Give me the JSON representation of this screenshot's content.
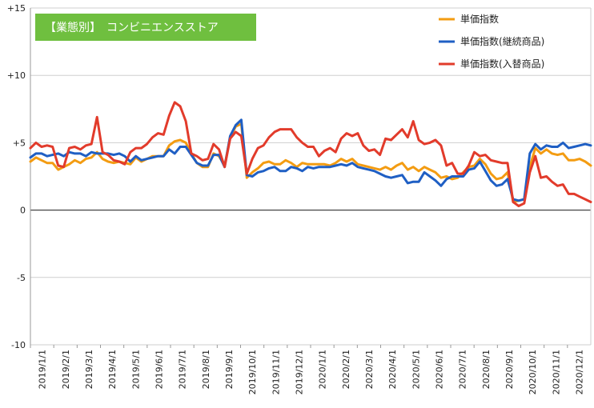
{
  "chart_data": {
    "type": "line",
    "title": "【業態別】　コンビニエンスストア",
    "title_bg_color": "#6fbf3f",
    "ylim": [
      -10,
      15
    ],
    "yticks": [
      {
        "value": 15,
        "label": "+15"
      },
      {
        "value": 10,
        "label": "+10"
      },
      {
        "value": 5,
        "label": "+5"
      },
      {
        "value": 0,
        "label": "0"
      },
      {
        "value": -5,
        "label": "-5"
      },
      {
        "value": -10,
        "label": "-10"
      }
    ],
    "grid": true,
    "legend_position": "top-right",
    "x_tick_labels": [
      "2019/1/1",
      "2019/2/1",
      "2019/3/1",
      "2019/4/1",
      "2019/5/1",
      "2019/6/1",
      "2019/7/1",
      "2019/8/1",
      "2019/9/1",
      "2019/10/1",
      "2019/11/1",
      "2019/12/1",
      "2020/1/1",
      "2020/2/1",
      "2020/3/1",
      "2020/4/1",
      "2020/5/1",
      "2020/6/1",
      "2020/7/1",
      "2020/8/1",
      "2020/9/1",
      "2020/10/1",
      "2020/11/1",
      "2020/12/1"
    ],
    "weeks_per_axis": 104,
    "series": [
      {
        "name": "単価指数",
        "color": "#f39c12",
        "values": [
          3.6,
          3.9,
          3.7,
          3.5,
          3.5,
          3.0,
          3.2,
          3.4,
          3.7,
          3.5,
          3.8,
          3.9,
          4.3,
          3.8,
          3.6,
          3.5,
          3.6,
          3.5,
          3.4,
          3.9,
          3.6,
          3.8,
          4.0,
          4.0,
          4.0,
          4.8,
          5.1,
          5.2,
          5.0,
          4.2,
          3.5,
          3.2,
          3.2,
          4.2,
          4.0,
          3.3,
          5.4,
          6.2,
          6.4,
          2.4,
          2.8,
          3.1,
          3.5,
          3.6,
          3.4,
          3.4,
          3.7,
          3.5,
          3.2,
          3.5,
          3.4,
          3.4,
          3.4,
          3.4,
          3.3,
          3.5,
          3.8,
          3.6,
          3.8,
          3.4,
          3.3,
          3.2,
          3.1,
          3.0,
          3.2,
          3.0,
          3.3,
          3.5,
          3.0,
          3.2,
          2.9,
          3.2,
          3.0,
          2.8,
          2.4,
          2.5,
          2.3,
          2.4,
          2.8,
          3.2,
          3.3,
          3.8,
          3.4,
          2.7,
          2.3,
          2.4,
          2.8,
          0.6,
          0.7,
          0.8,
          3.2,
          4.6,
          4.2,
          4.5,
          4.2,
          4.1,
          4.2,
          3.7,
          3.7,
          3.8,
          3.6,
          3.3
        ]
      },
      {
        "name": "単価指数(継続商品)",
        "color": "#1f5fc4",
        "values": [
          3.9,
          4.2,
          4.2,
          4.0,
          4.1,
          4.2,
          4.0,
          4.3,
          4.2,
          4.2,
          4.0,
          4.3,
          4.2,
          4.2,
          4.2,
          4.1,
          4.2,
          4.0,
          3.6,
          4.0,
          3.7,
          3.8,
          3.9,
          4.0,
          4.0,
          4.5,
          4.2,
          4.7,
          4.7,
          4.1,
          3.5,
          3.3,
          3.3,
          4.1,
          4.1,
          3.2,
          5.5,
          6.3,
          6.7,
          2.6,
          2.5,
          2.8,
          2.9,
          3.1,
          3.2,
          2.9,
          2.9,
          3.2,
          3.1,
          2.9,
          3.2,
          3.1,
          3.2,
          3.2,
          3.2,
          3.3,
          3.4,
          3.3,
          3.5,
          3.2,
          3.1,
          3.0,
          2.9,
          2.7,
          2.5,
          2.4,
          2.5,
          2.6,
          2.0,
          2.1,
          2.1,
          2.8,
          2.5,
          2.2,
          1.8,
          2.3,
          2.5,
          2.5,
          2.5,
          3.0,
          3.1,
          3.6,
          2.9,
          2.2,
          1.8,
          1.9,
          2.3,
          0.8,
          0.7,
          0.8,
          4.2,
          4.9,
          4.5,
          4.8,
          4.7,
          4.7,
          5.0,
          4.6,
          4.7,
          4.8,
          4.9,
          4.8
        ]
      },
      {
        "name": "単価指数(入替商品)",
        "color": "#e23b2b",
        "values": [
          4.6,
          5.0,
          4.7,
          4.8,
          4.7,
          3.3,
          3.2,
          4.6,
          4.7,
          4.5,
          4.8,
          4.9,
          6.9,
          4.3,
          4.1,
          3.7,
          3.6,
          3.4,
          4.3,
          4.6,
          4.6,
          4.9,
          5.4,
          5.7,
          5.6,
          7.0,
          8.0,
          7.7,
          6.6,
          4.2,
          4.0,
          3.7,
          3.8,
          4.9,
          4.5,
          3.2,
          5.3,
          5.8,
          5.5,
          2.7,
          3.8,
          4.6,
          4.8,
          5.4,
          5.8,
          6.0,
          6.0,
          6.0,
          5.4,
          5.0,
          4.7,
          4.7,
          4.0,
          4.4,
          4.6,
          4.3,
          5.3,
          5.7,
          5.5,
          5.7,
          4.8,
          4.4,
          4.5,
          4.1,
          5.3,
          5.2,
          5.6,
          6.0,
          5.4,
          6.6,
          5.2,
          4.9,
          5.0,
          5.2,
          4.8,
          3.3,
          3.5,
          2.7,
          2.7,
          3.3,
          4.3,
          4.0,
          4.1,
          3.7,
          3.6,
          3.5,
          3.5,
          0.6,
          0.3,
          0.5,
          2.8,
          4.0,
          2.4,
          2.5,
          2.1,
          1.8,
          1.9,
          1.2,
          1.2,
          1.0,
          0.8,
          0.6
        ]
      }
    ]
  }
}
